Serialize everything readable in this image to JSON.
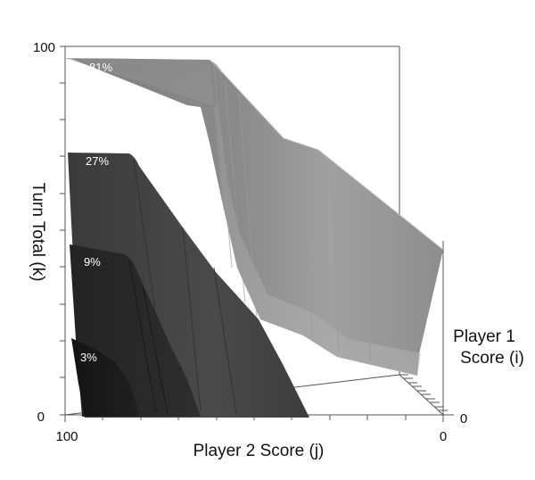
{
  "chart_data": {
    "type": "area",
    "projection": "3d-surface",
    "xlabel": "Player 2 Score (j)",
    "ylabel": "Turn Total (k)",
    "zlabel_line1": "Player 1",
    "zlabel_line2": "Score (i)",
    "x_ticks": {
      "min_label": "100",
      "max_label": "0"
    },
    "y_ticks": {
      "min_label": "0",
      "max_label": "100"
    },
    "z_ticks": {
      "min_label": "0"
    },
    "xlim": [
      100,
      0
    ],
    "ylim": [
      0,
      100
    ],
    "zlim": [
      0,
      100
    ],
    "grid": false,
    "series": [
      {
        "label": "81%",
        "color": "#8c8c8c",
        "shade_light": "#a6a6a6",
        "shade_dark": "#7a7a7a"
      },
      {
        "label": "27%",
        "color": "#444444",
        "shade_light": "#555555",
        "shade_dark": "#333333"
      },
      {
        "label": "9%",
        "color": "#272727",
        "shade_light": "#333333",
        "shade_dark": "#1c1c1c"
      },
      {
        "label": "3%",
        "color": "#1a1a1a",
        "shade_light": "#262626",
        "shade_dark": "#111111"
      }
    ]
  }
}
